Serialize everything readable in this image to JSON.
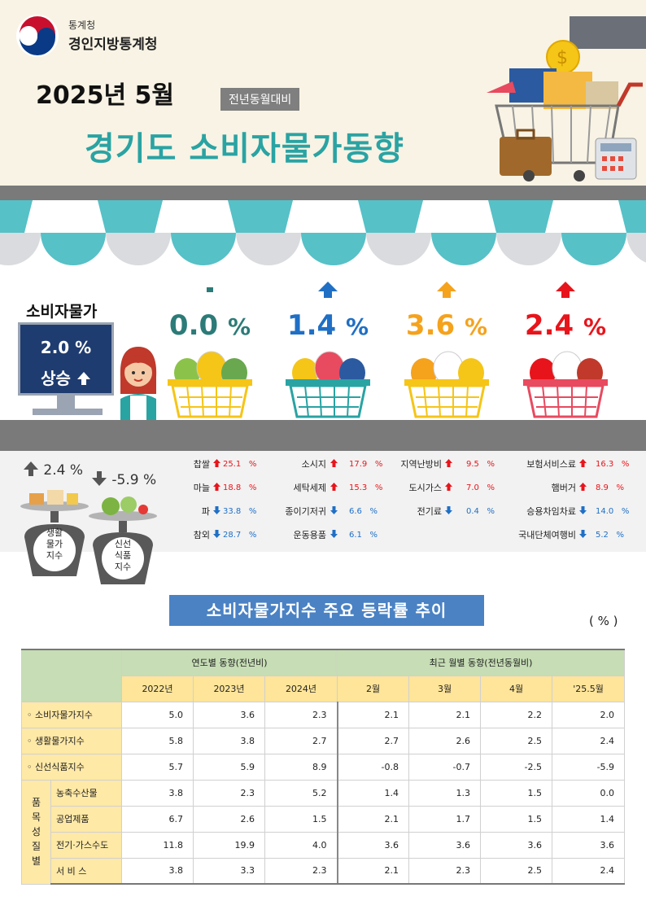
{
  "header": {
    "org_small": "통계청",
    "org_name": "경인지방통계청",
    "period": "2025년 5월",
    "basis_badge": "전년동월대비",
    "title": "경기도 소비자물가동향"
  },
  "cpi": {
    "label": "소비자물가",
    "value": "2.0 %",
    "direction": "상승",
    "direction_icon": "up-arrow-icon"
  },
  "categories": [
    {
      "name": "농축수산물",
      "rate": "0.0",
      "unit": "%",
      "trend": "flat",
      "color": "#2c7b78"
    },
    {
      "name": "공업제품",
      "rate": "1.4",
      "unit": "%",
      "trend": "up",
      "color": "#1f6fc5"
    },
    {
      "name": "전기·가스·수도",
      "rate": "3.6",
      "unit": "%",
      "trend": "up",
      "color": "#f5a21d"
    },
    {
      "name": "서비스",
      "rate": "2.4",
      "unit": "%",
      "trend": "up",
      "color": "#e8141b"
    }
  ],
  "items": [
    [
      {
        "name": "찹쌀",
        "dir": "up",
        "value": "25.1",
        "unit": "%"
      },
      {
        "name": "마늘",
        "dir": "up",
        "value": "18.8",
        "unit": "%"
      },
      {
        "name": "파",
        "dir": "down",
        "value": "33.8",
        "unit": "%"
      },
      {
        "name": "참외",
        "dir": "down",
        "value": "28.7",
        "unit": "%"
      }
    ],
    [
      {
        "name": "소시지",
        "dir": "up",
        "value": "17.9",
        "unit": "%"
      },
      {
        "name": "세탁세제",
        "dir": "up",
        "value": "15.3",
        "unit": "%"
      },
      {
        "name": "종이기저귀",
        "dir": "down",
        "value": "6.6",
        "unit": "%"
      },
      {
        "name": "운동용품",
        "dir": "down",
        "value": "6.1",
        "unit": "%"
      }
    ],
    [
      {
        "name": "지역난방비",
        "dir": "up",
        "value": "9.5",
        "unit": "%"
      },
      {
        "name": "도시가스",
        "dir": "up",
        "value": "7.0",
        "unit": "%"
      },
      {
        "name": "전기료",
        "dir": "down",
        "value": "0.4",
        "unit": "%"
      }
    ],
    [
      {
        "name": "보험서비스료",
        "dir": "up",
        "value": "16.3",
        "unit": "%"
      },
      {
        "name": "햄버거",
        "dir": "up",
        "value": "8.9",
        "unit": "%"
      },
      {
        "name": "승용차임차료",
        "dir": "down",
        "value": "14.0",
        "unit": "%"
      },
      {
        "name": "국내단체여행비",
        "dir": "down",
        "value": "5.2",
        "unit": "%"
      }
    ]
  ],
  "life_index": {
    "rate": "2.4 %",
    "label_l1": "생활",
    "label_l2": "물가",
    "label_l3": "지수",
    "dir": "up"
  },
  "fresh_index": {
    "rate": "-5.9 %",
    "label_l1": "신선",
    "label_l2": "식품",
    "label_l3": "지수",
    "dir": "down"
  },
  "table": {
    "title": "소비자물가지수 주요 등락률 추이",
    "unit": "( % )",
    "group_annual": "연도별 동향(전년비)",
    "group_monthly": "최근 월별 동향(전년동월비)",
    "columns": [
      "2022년",
      "2023년",
      "2024년",
      "2월",
      "3월",
      "4월",
      "'25.5월"
    ],
    "side_label": [
      "품",
      "목",
      "성",
      "질",
      "별"
    ],
    "rows": [
      {
        "label": "◦ 소비자물가지수",
        "values": [
          "5.0",
          "3.6",
          "2.3",
          "2.1",
          "2.1",
          "2.2",
          "2.0"
        ]
      },
      {
        "label": "◦ 생활물가지수",
        "values": [
          "5.8",
          "3.8",
          "2.7",
          "2.7",
          "2.6",
          "2.5",
          "2.4"
        ]
      },
      {
        "label": "◦ 신선식품지수",
        "values": [
          "5.7",
          "5.9",
          "8.9",
          "-0.8",
          "-0.7",
          "-2.5",
          "-5.9"
        ]
      },
      {
        "label": "농축수산물",
        "values": [
          "3.8",
          "2.3",
          "5.2",
          "1.4",
          "1.3",
          "1.5",
          "0.0"
        ]
      },
      {
        "label": "공업제품",
        "values": [
          "6.7",
          "2.6",
          "1.5",
          "2.1",
          "1.7",
          "1.5",
          "1.4"
        ]
      },
      {
        "label": "전기·가스수도",
        "values": [
          "11.8",
          "19.9",
          "4.0",
          "3.6",
          "3.6",
          "3.6",
          "3.6"
        ]
      },
      {
        "label": "서 비 스",
        "values": [
          "3.8",
          "3.3",
          "2.3",
          "2.1",
          "2.3",
          "2.5",
          "2.4"
        ]
      }
    ]
  },
  "colors": {
    "up": "#e8141b",
    "down": "#1f6fc5",
    "teal": "#2aa3a3",
    "navy": "#1f3c70"
  }
}
